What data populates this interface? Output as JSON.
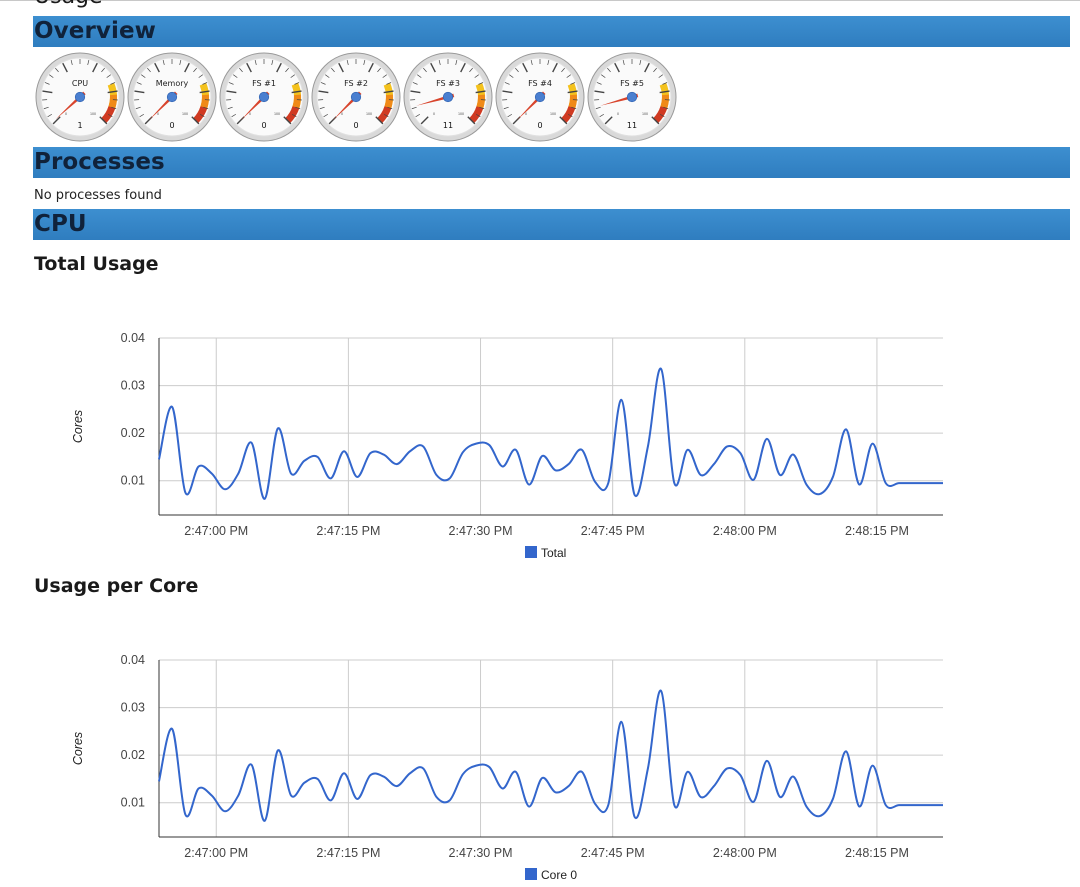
{
  "page": {
    "heading_partial": "Usage"
  },
  "overview": {
    "title": "Overview",
    "gauges": [
      {
        "label": "CPU",
        "value": 1
      },
      {
        "label": "Memory",
        "value": 0
      },
      {
        "label": "FS #1",
        "value": 0
      },
      {
        "label": "FS #2",
        "value": 0
      },
      {
        "label": "FS #3",
        "value": 11
      },
      {
        "label": "FS #4",
        "value": 0
      },
      {
        "label": "FS #5",
        "value": 11
      }
    ],
    "gauge_scale": {
      "min_label": "0",
      "max_label": "100",
      "min": 0,
      "max": 100
    },
    "colors": {
      "needle": "#d8442c",
      "hub": "#4a7fd0",
      "yellow": "#f4c21d",
      "orange": "#f08a18",
      "red": "#d03a22"
    }
  },
  "processes": {
    "title": "Processes",
    "empty_message": "No processes found"
  },
  "cpu": {
    "title": "CPU",
    "total_usage_title": "Total Usage",
    "per_core_title": "Usage per Core"
  },
  "chart_data": [
    {
      "type": "line",
      "title": "Total Usage",
      "xlabel": "",
      "ylabel": "Cores",
      "ylim": [
        0.0028,
        0.04
      ],
      "yticks": [
        "0.01",
        "0.02",
        "0.03",
        "0.04"
      ],
      "xticks": [
        "2:47:00 PM",
        "2:47:15 PM",
        "2:47:30 PM",
        "2:47:45 PM",
        "2:48:00 PM",
        "2:48:15 PM"
      ],
      "xtick_seconds": [
        166020,
        166035,
        166050,
        166065,
        166080,
        166095
      ],
      "xlim": [
        166013.5,
        166102.5
      ],
      "grid": true,
      "legend": "bottom",
      "line_color": "#3366cc",
      "series": [
        {
          "name": "Total",
          "x": [
            166013.5,
            166015.0,
            166016.5,
            166018.0,
            166019.5,
            166021.0,
            166022.5,
            166024.0,
            166025.5,
            166027.0,
            166028.5,
            166030.0,
            166031.5,
            166033.0,
            166034.5,
            166036.0,
            166037.5,
            166039.0,
            166040.5,
            166042.0,
            166043.5,
            166045.0,
            166046.5,
            166048.0,
            166049.5,
            166051.0,
            166052.5,
            166054.0,
            166055.5,
            166057.0,
            166058.5,
            166060.0,
            166061.5,
            166063.0,
            166064.5,
            166066.0,
            166067.5,
            166069.0,
            166070.5,
            166072.0,
            166073.5,
            166075.0,
            166076.5,
            166078.0,
            166079.5,
            166081.0,
            166082.5,
            166084.0,
            166085.5,
            166087.0,
            166088.5,
            166090.0,
            166091.5,
            166093.0,
            166094.5,
            166096.0,
            166097.5,
            166099.0,
            166100.5,
            166102.5
          ],
          "values": [
            0.0145,
            0.0255,
            0.0075,
            0.013,
            0.0115,
            0.0082,
            0.0115,
            0.018,
            0.0062,
            0.021,
            0.0115,
            0.0142,
            0.015,
            0.0105,
            0.0162,
            0.0108,
            0.0158,
            0.0155,
            0.0135,
            0.0162,
            0.0172,
            0.0112,
            0.0105,
            0.016,
            0.0178,
            0.0175,
            0.013,
            0.0165,
            0.0092,
            0.0152,
            0.0122,
            0.0135,
            0.0165,
            0.0098,
            0.0095,
            0.027,
            0.007,
            0.0172,
            0.0335,
            0.0095,
            0.0165,
            0.0112,
            0.0135,
            0.0172,
            0.0158,
            0.0102,
            0.0188,
            0.0112,
            0.0155,
            0.0092,
            0.0072,
            0.0108,
            0.0208,
            0.0092,
            0.0178,
            0.0095,
            0.0095,
            0.0095,
            0.0095,
            0.0095
          ]
        }
      ]
    },
    {
      "type": "line",
      "title": "Usage per Core",
      "xlabel": "",
      "ylabel": "Cores",
      "ylim": [
        0.0028,
        0.04
      ],
      "yticks": [
        "0.01",
        "0.02",
        "0.03",
        "0.04"
      ],
      "xticks": [
        "2:47:00 PM",
        "2:47:15 PM",
        "2:47:30 PM",
        "2:47:45 PM",
        "2:48:00 PM",
        "2:48:15 PM"
      ],
      "xtick_seconds": [
        166020,
        166035,
        166050,
        166065,
        166080,
        166095
      ],
      "xlim": [
        166013.5,
        166102.5
      ],
      "grid": true,
      "legend": "bottom",
      "line_color": "#3366cc",
      "series": [
        {
          "name": "Core 0",
          "x": [
            166013.5,
            166015.0,
            166016.5,
            166018.0,
            166019.5,
            166021.0,
            166022.5,
            166024.0,
            166025.5,
            166027.0,
            166028.5,
            166030.0,
            166031.5,
            166033.0,
            166034.5,
            166036.0,
            166037.5,
            166039.0,
            166040.5,
            166042.0,
            166043.5,
            166045.0,
            166046.5,
            166048.0,
            166049.5,
            166051.0,
            166052.5,
            166054.0,
            166055.5,
            166057.0,
            166058.5,
            166060.0,
            166061.5,
            166063.0,
            166064.5,
            166066.0,
            166067.5,
            166069.0,
            166070.5,
            166072.0,
            166073.5,
            166075.0,
            166076.5,
            166078.0,
            166079.5,
            166081.0,
            166082.5,
            166084.0,
            166085.5,
            166087.0,
            166088.5,
            166090.0,
            166091.5,
            166093.0,
            166094.5,
            166096.0,
            166097.5,
            166099.0,
            166100.5,
            166102.5
          ],
          "values": [
            0.0145,
            0.0255,
            0.0075,
            0.013,
            0.0115,
            0.0082,
            0.0115,
            0.018,
            0.0062,
            0.021,
            0.0115,
            0.0142,
            0.015,
            0.0105,
            0.0162,
            0.0108,
            0.0158,
            0.0155,
            0.0135,
            0.0162,
            0.0172,
            0.0112,
            0.0105,
            0.016,
            0.0178,
            0.0175,
            0.013,
            0.0165,
            0.0092,
            0.0152,
            0.0122,
            0.0135,
            0.0165,
            0.0098,
            0.0095,
            0.027,
            0.007,
            0.0172,
            0.0335,
            0.0095,
            0.0165,
            0.0112,
            0.0135,
            0.0172,
            0.0158,
            0.0102,
            0.0188,
            0.0112,
            0.0155,
            0.0092,
            0.0072,
            0.0108,
            0.0208,
            0.0092,
            0.0178,
            0.0095,
            0.0095,
            0.0095,
            0.0095,
            0.0095
          ]
        }
      ]
    }
  ]
}
